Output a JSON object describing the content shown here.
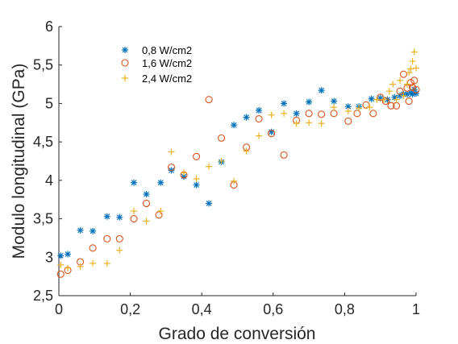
{
  "chart_data": {
    "type": "scatter",
    "xlabel": "Grado de conversión",
    "ylabel": "Modulo longitudinal (GPa)",
    "xlim": [
      0,
      1
    ],
    "ylim": [
      2.5,
      6
    ],
    "x_ticks": [
      "0",
      "0,2",
      "0,4",
      "0,6",
      "0,8",
      "1"
    ],
    "y_ticks": [
      "2,5",
      "3",
      "3,5",
      "4",
      "4,5",
      "5",
      "5,5",
      "6"
    ],
    "grid": false,
    "legend_position": "top-left",
    "series": [
      {
        "name": "0,8 W/cm2",
        "marker": "asterisk",
        "color": "#0072BD",
        "points": [
          [
            0.005,
            3.02
          ],
          [
            0.025,
            3.04
          ],
          [
            0.06,
            3.35
          ],
          [
            0.095,
            3.34
          ],
          [
            0.135,
            3.53
          ],
          [
            0.17,
            3.52
          ],
          [
            0.21,
            3.97
          ],
          [
            0.245,
            3.82
          ],
          [
            0.285,
            3.97
          ],
          [
            0.315,
            4.13
          ],
          [
            0.35,
            4.05
          ],
          [
            0.385,
            3.94
          ],
          [
            0.42,
            3.7
          ],
          [
            0.455,
            4.24
          ],
          [
            0.49,
            4.72
          ],
          [
            0.525,
            4.82
          ],
          [
            0.56,
            4.91
          ],
          [
            0.595,
            4.63
          ],
          [
            0.63,
            5.0
          ],
          [
            0.665,
            4.87
          ],
          [
            0.7,
            5.02
          ],
          [
            0.735,
            5.17
          ],
          [
            0.77,
            5.03
          ],
          [
            0.81,
            4.96
          ],
          [
            0.84,
            4.96
          ],
          [
            0.875,
            5.06
          ],
          [
            0.9,
            5.07
          ],
          [
            0.92,
            5.05
          ],
          [
            0.94,
            5.08
          ],
          [
            0.955,
            5.1
          ],
          [
            0.965,
            5.12
          ],
          [
            0.975,
            5.12
          ],
          [
            0.985,
            5.14
          ],
          [
            0.99,
            5.12
          ],
          [
            0.995,
            5.18
          ],
          [
            1.0,
            5.13
          ]
        ]
      },
      {
        "name": "1,6 W/cm2",
        "marker": "circle",
        "color": "#D95319",
        "points": [
          [
            0.005,
            2.78
          ],
          [
            0.025,
            2.83
          ],
          [
            0.06,
            2.94
          ],
          [
            0.095,
            3.12
          ],
          [
            0.135,
            3.24
          ],
          [
            0.17,
            3.24
          ],
          [
            0.21,
            3.5
          ],
          [
            0.245,
            3.7
          ],
          [
            0.28,
            3.55
          ],
          [
            0.315,
            4.17
          ],
          [
            0.35,
            4.07
          ],
          [
            0.385,
            4.31
          ],
          [
            0.42,
            5.05
          ],
          [
            0.455,
            4.55
          ],
          [
            0.49,
            3.94
          ],
          [
            0.525,
            4.43
          ],
          [
            0.56,
            4.8
          ],
          [
            0.595,
            4.61
          ],
          [
            0.63,
            4.33
          ],
          [
            0.665,
            4.78
          ],
          [
            0.7,
            4.87
          ],
          [
            0.735,
            4.86
          ],
          [
            0.77,
            4.87
          ],
          [
            0.81,
            4.77
          ],
          [
            0.835,
            4.87
          ],
          [
            0.86,
            4.98
          ],
          [
            0.88,
            4.87
          ],
          [
            0.9,
            5.08
          ],
          [
            0.915,
            5.03
          ],
          [
            0.93,
            4.97
          ],
          [
            0.945,
            4.97
          ],
          [
            0.955,
            5.16
          ],
          [
            0.965,
            5.38
          ],
          [
            0.975,
            5.2
          ],
          [
            0.98,
            5.03
          ],
          [
            0.985,
            5.27
          ],
          [
            0.99,
            5.21
          ],
          [
            0.995,
            5.3
          ],
          [
            1.0,
            5.18
          ]
        ]
      },
      {
        "name": "2,4 W/cm2",
        "marker": "plus",
        "color": "#EDB120",
        "points": [
          [
            0.005,
            2.9
          ],
          [
            0.025,
            2.86
          ],
          [
            0.06,
            2.88
          ],
          [
            0.095,
            2.92
          ],
          [
            0.135,
            2.92
          ],
          [
            0.17,
            3.09
          ],
          [
            0.21,
            3.6
          ],
          [
            0.245,
            3.47
          ],
          [
            0.285,
            3.6
          ],
          [
            0.315,
            4.37
          ],
          [
            0.35,
            4.1
          ],
          [
            0.385,
            4.02
          ],
          [
            0.42,
            4.18
          ],
          [
            0.455,
            4.25
          ],
          [
            0.49,
            3.99
          ],
          [
            0.525,
            4.38
          ],
          [
            0.56,
            4.58
          ],
          [
            0.595,
            4.85
          ],
          [
            0.63,
            4.87
          ],
          [
            0.665,
            4.74
          ],
          [
            0.7,
            4.75
          ],
          [
            0.735,
            4.74
          ],
          [
            0.77,
            4.95
          ],
          [
            0.81,
            4.9
          ],
          [
            0.84,
            4.94
          ],
          [
            0.87,
            4.95
          ],
          [
            0.89,
            5.05
          ],
          [
            0.91,
            5.05
          ],
          [
            0.925,
            5.16
          ],
          [
            0.935,
            5.25
          ],
          [
            0.945,
            5.05
          ],
          [
            0.955,
            5.3
          ],
          [
            0.965,
            5.1
          ],
          [
            0.975,
            5.25
          ],
          [
            0.98,
            5.4
          ],
          [
            0.985,
            5.45
          ],
          [
            0.99,
            5.55
          ],
          [
            0.995,
            5.67
          ],
          [
            1.0,
            5.46
          ]
        ]
      }
    ]
  }
}
